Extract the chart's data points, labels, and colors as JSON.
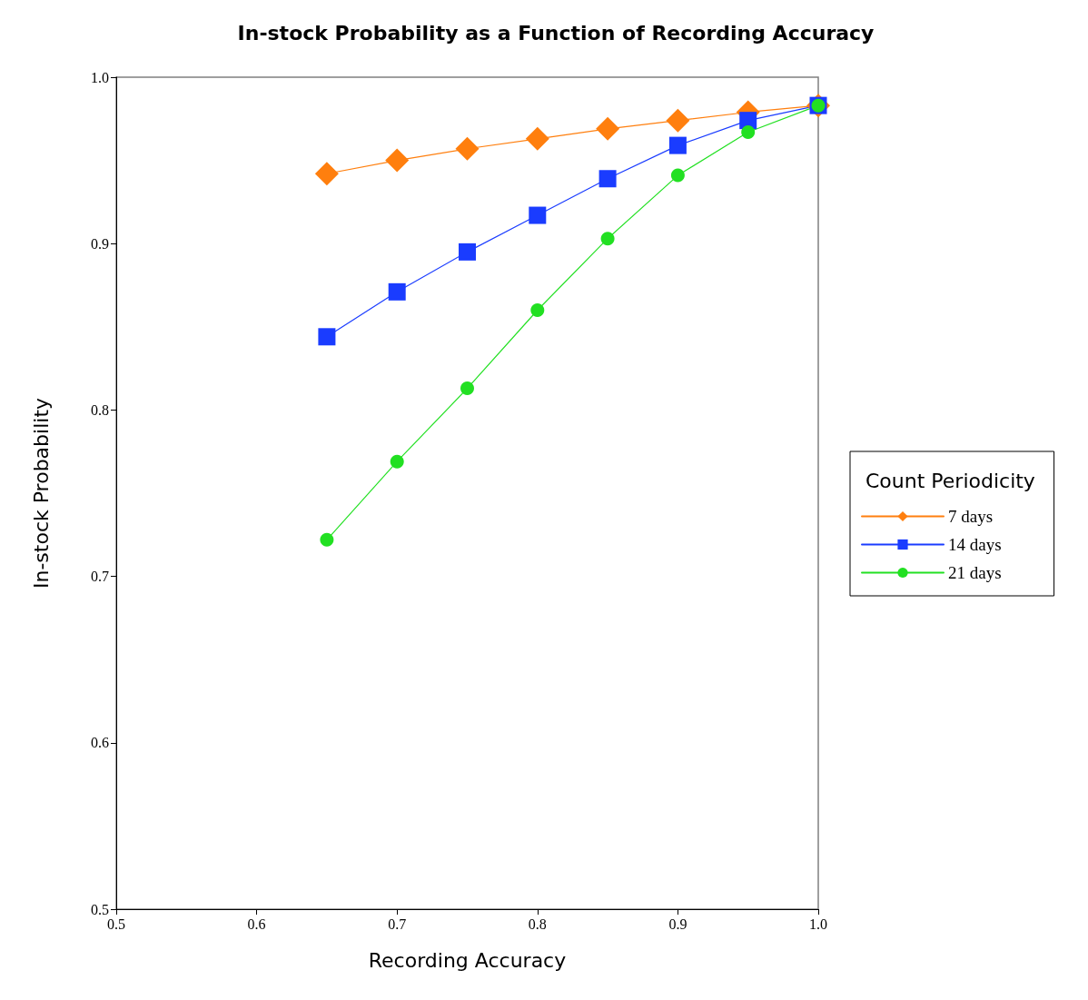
{
  "chart_data": {
    "type": "line",
    "title": "In-stock Probability as a Function of Recording Accuracy",
    "xlabel": "Recording Accuracy",
    "ylabel": "In-stock Probability",
    "legend_title": "Count Periodicity",
    "x": [
      0.65,
      0.7,
      0.75,
      0.8,
      0.85,
      0.9,
      0.95,
      1.0
    ],
    "series": [
      {
        "name": "7 days",
        "color": "#ff7f0e",
        "marker": "diamond",
        "values": [
          0.942,
          0.95,
          0.957,
          0.963,
          0.969,
          0.974,
          0.979,
          0.983
        ]
      },
      {
        "name": "14 days",
        "color": "#1a3cff",
        "marker": "square",
        "values": [
          0.844,
          0.871,
          0.895,
          0.917,
          0.939,
          0.959,
          0.974,
          0.983
        ]
      },
      {
        "name": "21 days",
        "color": "#22e022",
        "marker": "circle",
        "values": [
          0.722,
          0.769,
          0.813,
          0.86,
          0.903,
          0.941,
          0.967,
          0.983
        ]
      }
    ],
    "xlim": [
      0.5,
      1.0
    ],
    "ylim": [
      0.5,
      1.0
    ],
    "xticks": [
      0.5,
      0.6,
      0.7,
      0.8,
      0.9,
      {
        "value": 1,
        "label": "1.0"
      }
    ],
    "yticks": [
      0.5,
      0.6,
      0.7,
      0.8,
      0.9,
      {
        "value": 1,
        "label": "1.0"
      }
    ],
    "grid": false,
    "legend": "right",
    "line_style": "solid"
  }
}
